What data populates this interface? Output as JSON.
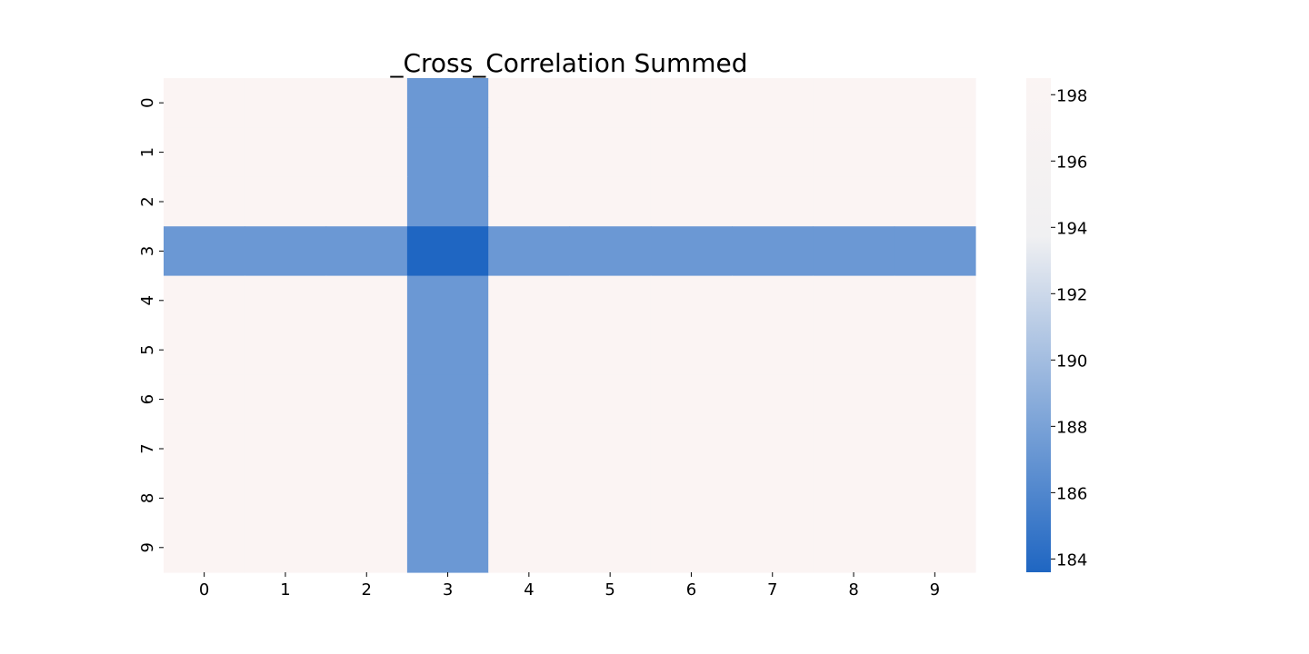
{
  "chart_data": {
    "type": "heatmap",
    "title": "_Cross_Correlation Summed",
    "x_categories": [
      "0",
      "1",
      "2",
      "3",
      "4",
      "5",
      "6",
      "7",
      "8",
      "9"
    ],
    "y_categories": [
      "0",
      "1",
      "2",
      "3",
      "4",
      "5",
      "6",
      "7",
      "8",
      "9"
    ],
    "values": [
      [
        198.4,
        198.4,
        198.4,
        187.3,
        198.4,
        198.4,
        198.4,
        198.4,
        198.4,
        198.4
      ],
      [
        198.4,
        198.4,
        198.4,
        187.3,
        198.4,
        198.4,
        198.4,
        198.4,
        198.4,
        198.4
      ],
      [
        198.4,
        198.4,
        198.4,
        187.3,
        198.4,
        198.4,
        198.4,
        198.4,
        198.4,
        198.4
      ],
      [
        187.3,
        187.3,
        187.3,
        183.6,
        187.3,
        187.3,
        187.3,
        187.3,
        187.3,
        187.3
      ],
      [
        198.4,
        198.4,
        198.4,
        187.3,
        198.4,
        198.4,
        198.4,
        198.4,
        198.4,
        198.4
      ],
      [
        198.4,
        198.4,
        198.4,
        187.3,
        198.4,
        198.4,
        198.4,
        198.4,
        198.4,
        198.4
      ],
      [
        198.4,
        198.4,
        198.4,
        187.3,
        198.4,
        198.4,
        198.4,
        198.4,
        198.4,
        198.4
      ],
      [
        198.4,
        198.4,
        198.4,
        187.3,
        198.4,
        198.4,
        198.4,
        198.4,
        198.4,
        198.4
      ],
      [
        198.4,
        198.4,
        198.4,
        187.3,
        198.4,
        198.4,
        198.4,
        198.4,
        198.4,
        198.4
      ],
      [
        198.4,
        198.4,
        198.4,
        187.3,
        198.4,
        198.4,
        198.4,
        198.4,
        198.4,
        198.4
      ]
    ],
    "colorbar": {
      "range": [
        183.6,
        198.5
      ],
      "ticks": [
        184,
        186,
        188,
        190,
        192,
        194,
        196,
        198
      ],
      "colors": [
        "#1f66c2",
        "#f0f0f2",
        "#fbf4f3"
      ]
    },
    "grid": false,
    "legend": "colorbar-right"
  }
}
